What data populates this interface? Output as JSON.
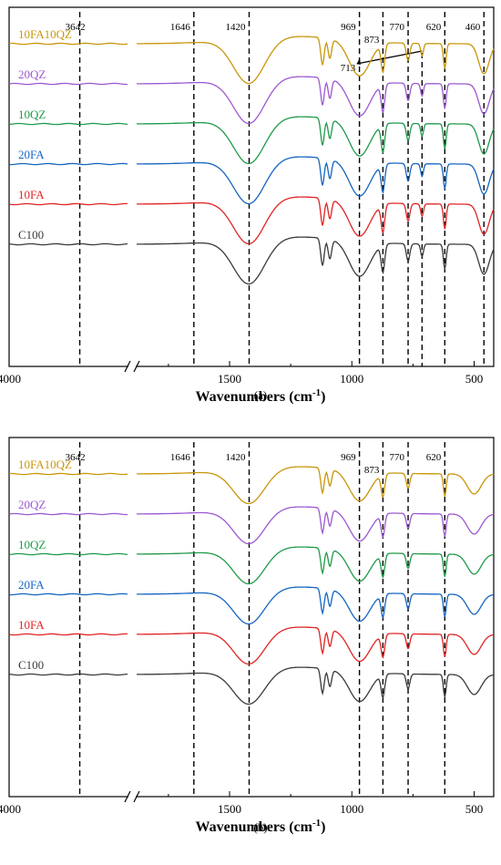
{
  "chart_data": [
    {
      "type": "line",
      "caption": "(a)",
      "xlabel": "Wavenumbers (cm",
      "xlabel_sup": "-1",
      "xlabel_end": ")",
      "ylabel": "",
      "x_ticks": [
        "4000",
        "1500",
        "1000",
        "500"
      ],
      "xlim": [
        4000,
        420
      ],
      "axis_break": true,
      "x_segments": [
        [
          4000,
          3400
        ],
        [
          1880,
          420
        ]
      ],
      "reference_lines": [
        3642,
        1646,
        1420,
        969,
        873,
        770,
        713,
        620,
        460
      ],
      "reference_labels": [
        "3642",
        "1646",
        "1420",
        "969",
        "873",
        "770",
        "713",
        "620",
        "460"
      ],
      "annotation": {
        "text": "713",
        "target": 713
      },
      "series": [
        {
          "name": "10FA10QZ",
          "color": "#c8960a",
          "offset": 5
        },
        {
          "name": "20QZ",
          "color": "#9b59d0",
          "offset": 4
        },
        {
          "name": "10QZ",
          "color": "#1f9a4a",
          "offset": 3
        },
        {
          "name": "20FA",
          "color": "#1565c0",
          "offset": 2
        },
        {
          "name": "10FA",
          "color": "#e02424",
          "offset": 1
        },
        {
          "name": "C100",
          "color": "#3a3a3a",
          "offset": 0
        }
      ],
      "bands": [
        {
          "center": 1420,
          "depth": 0.9,
          "width": 90
        },
        {
          "center": 1120,
          "depth": 0.55,
          "width": 10
        },
        {
          "center": 1090,
          "depth": 0.4,
          "width": 10
        },
        {
          "center": 969,
          "depth": 0.7,
          "width": 60
        },
        {
          "center": 873,
          "depth": 0.55,
          "width": 10
        },
        {
          "center": 770,
          "depth": 0.35,
          "width": 10
        },
        {
          "center": 713,
          "depth": 0.25,
          "width": 8
        },
        {
          "center": 620,
          "depth": 0.5,
          "width": 8
        },
        {
          "center": 460,
          "depth": 0.6,
          "width": 30
        }
      ]
    },
    {
      "type": "line",
      "caption": "(b)",
      "xlabel": "Wavenumbers (cm",
      "xlabel_sup": "-1",
      "xlabel_end": ")",
      "ylabel": "",
      "x_ticks": [
        "4000",
        "1500",
        "1000",
        "500"
      ],
      "xlim": [
        4000,
        420
      ],
      "axis_break": true,
      "x_segments": [
        [
          4000,
          3400
        ],
        [
          1880,
          420
        ]
      ],
      "reference_lines": [
        3642,
        1646,
        1420,
        969,
        873,
        770,
        620
      ],
      "reference_labels": [
        "3642",
        "1646",
        "1420",
        "969",
        "873",
        "770",
        "620"
      ],
      "series": [
        {
          "name": "10FA10QZ",
          "color": "#c8960a",
          "offset": 5
        },
        {
          "name": "20QZ",
          "color": "#9b59d0",
          "offset": 4
        },
        {
          "name": "10QZ",
          "color": "#1f9a4a",
          "offset": 3
        },
        {
          "name": "20FA",
          "color": "#1565c0",
          "offset": 2
        },
        {
          "name": "10FA",
          "color": "#e02424",
          "offset": 1
        },
        {
          "name": "C100",
          "color": "#3a3a3a",
          "offset": 0
        }
      ],
      "bands": [
        {
          "center": 1420,
          "depth": 0.7,
          "width": 90
        },
        {
          "center": 1120,
          "depth": 0.5,
          "width": 10
        },
        {
          "center": 1090,
          "depth": 0.35,
          "width": 10
        },
        {
          "center": 969,
          "depth": 0.6,
          "width": 60
        },
        {
          "center": 873,
          "depth": 0.45,
          "width": 10
        },
        {
          "center": 770,
          "depth": 0.3,
          "width": 10
        },
        {
          "center": 620,
          "depth": 0.45,
          "width": 8
        },
        {
          "center": 500,
          "depth": 0.4,
          "width": 40
        }
      ]
    }
  ]
}
